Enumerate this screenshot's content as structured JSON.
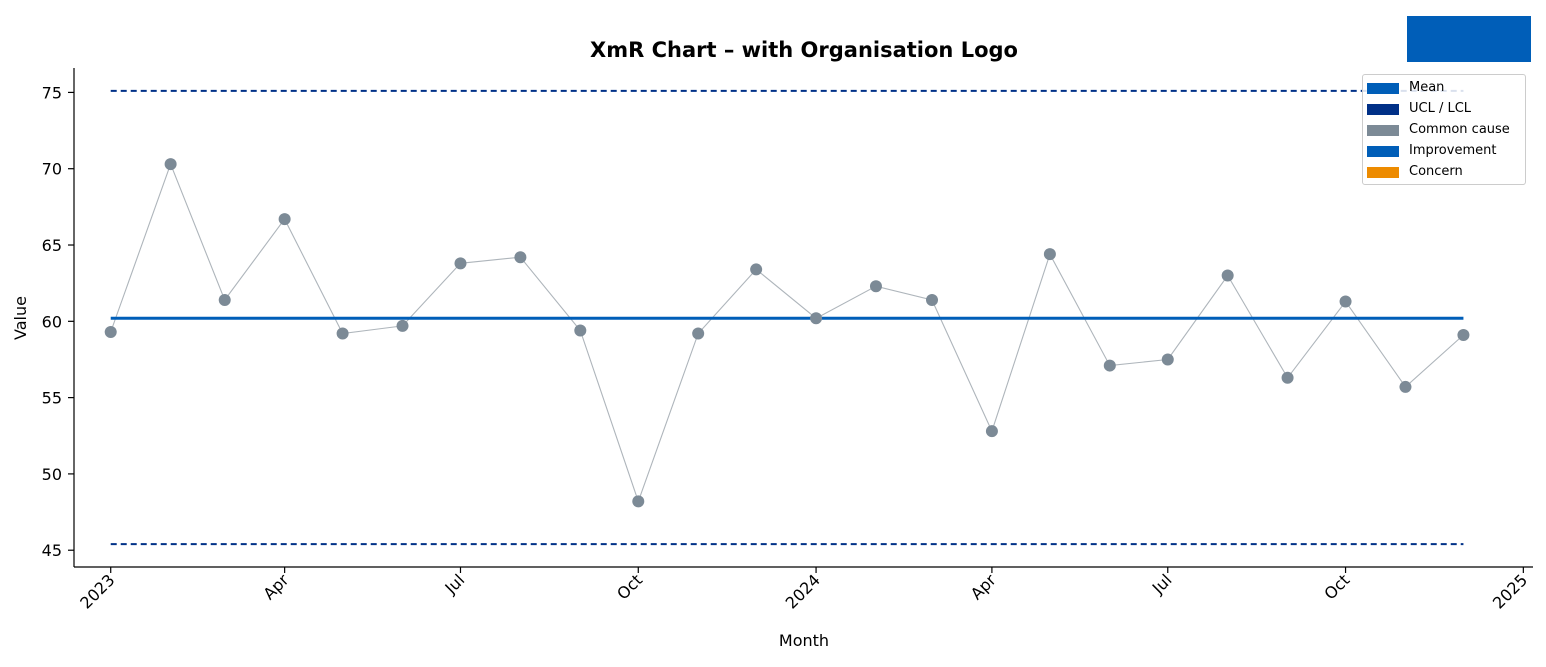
{
  "chart_data": {
    "type": "line",
    "title": "XmR Chart – with Organisation Logo",
    "xlabel": "Month",
    "ylabel": "Value",
    "ylim": [
      43.9,
      76.6
    ],
    "yticks": [
      45,
      50,
      55,
      60,
      65,
      70,
      75
    ],
    "xlim": [
      "2022-12-13",
      "2025-01-06"
    ],
    "xticks": [
      {
        "date": "2023-01-01",
        "label": "2023"
      },
      {
        "date": "2023-04-01",
        "label": "Apr"
      },
      {
        "date": "2023-07-01",
        "label": "Jul"
      },
      {
        "date": "2023-10-01",
        "label": "Oct"
      },
      {
        "date": "2024-01-01",
        "label": "2024"
      },
      {
        "date": "2024-04-01",
        "label": "Apr"
      },
      {
        "date": "2024-07-01",
        "label": "Jul"
      },
      {
        "date": "2024-10-01",
        "label": "Oct"
      },
      {
        "date": "2025-01-01",
        "label": "2025"
      }
    ],
    "mean": 60.2,
    "ucl": 75.1,
    "lcl": 45.4,
    "limits_span": [
      "2023-01-01",
      "2024-12-01"
    ],
    "series": [
      {
        "x": [
          "2023-01-01",
          "2023-02-01",
          "2023-03-01",
          "2023-04-01",
          "2023-05-01",
          "2023-06-01",
          "2023-07-01",
          "2023-08-01",
          "2023-09-01",
          "2023-10-01",
          "2023-11-01",
          "2023-12-01",
          "2024-01-01",
          "2024-02-01",
          "2024-03-01",
          "2024-04-01",
          "2024-05-01",
          "2024-06-01",
          "2024-07-01",
          "2024-08-01",
          "2024-09-01",
          "2024-10-01",
          "2024-11-01",
          "2024-12-01"
        ],
        "values": [
          59.3,
          70.3,
          61.4,
          66.7,
          59.2,
          59.7,
          63.8,
          64.2,
          59.4,
          48.2,
          59.2,
          63.4,
          60.2,
          62.3,
          61.4,
          52.8,
          64.4,
          57.1,
          57.5,
          63.0,
          56.3,
          61.3,
          55.7,
          59.1
        ]
      }
    ],
    "legend": {
      "position": "upper right",
      "items": [
        {
          "label": "Mean",
          "color": "#005EB8"
        },
        {
          "label": "UCL / LCL",
          "color": "#003087"
        },
        {
          "label": "Common cause",
          "color": "#7C8A96"
        },
        {
          "label": "Improvement",
          "color": "#005EB8"
        },
        {
          "label": "Concern",
          "color": "#ED8B00"
        }
      ]
    },
    "grid": false,
    "colors": {
      "mean": "#005EB8",
      "limits": "#003087",
      "points": "#7C8A96",
      "connector": "#AEB5BB",
      "logo": "#005EB8"
    }
  }
}
